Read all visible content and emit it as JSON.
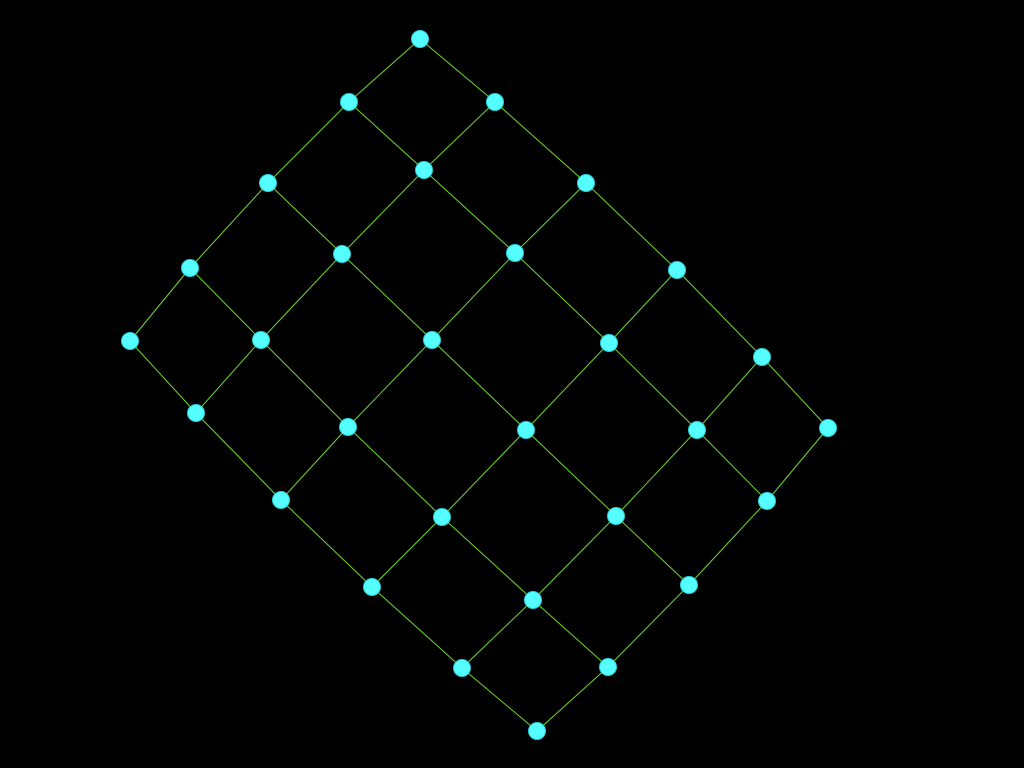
{
  "diagram": {
    "type": "lattice-graph",
    "rows": 5,
    "cols": 6,
    "node_count": 30,
    "colors": {
      "background": "#000000",
      "node_fill": "#55ffff",
      "node_stroke": "#2ad0d8",
      "edge": "#6fd82a"
    }
  }
}
